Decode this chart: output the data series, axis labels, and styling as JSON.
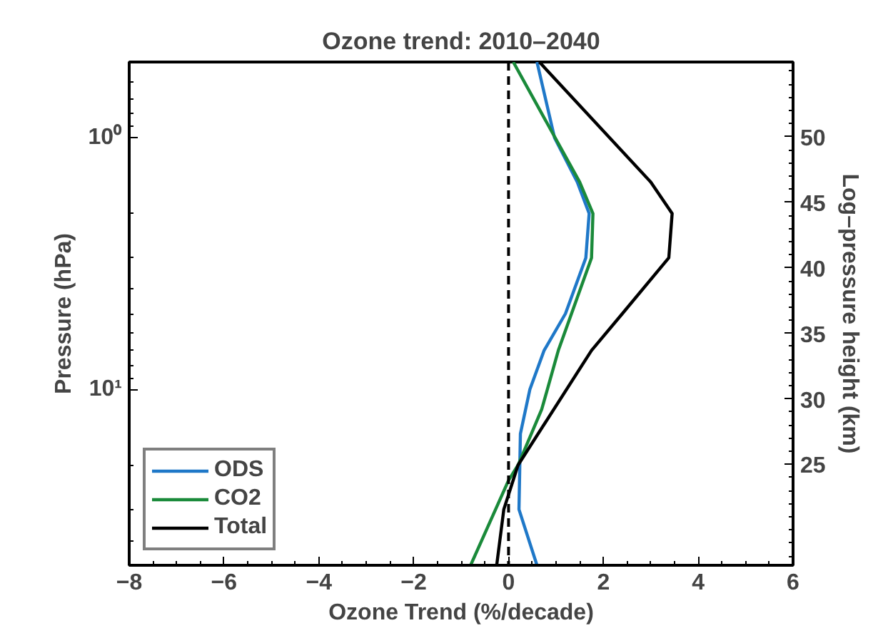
{
  "chart_data": {
    "type": "line",
    "title": "Ozone trend: 2010–2040",
    "xlabel": "Ozone Trend (%/decade)",
    "ylabel": "Pressure (hPa)",
    "y2label": "Log–pressure height (km)",
    "xlim": [
      -8,
      6
    ],
    "xticks": [
      {
        "value": -8,
        "label": "−8"
      },
      {
        "value": -6,
        "label": "−6"
      },
      {
        "value": -4,
        "label": "−4"
      },
      {
        "value": -2,
        "label": "−2"
      },
      0,
      2,
      4,
      6
    ],
    "ylim": [
      50,
      0.5
    ],
    "yticks": [
      {
        "value": 1,
        "label": "10⁰"
      },
      {
        "value": 10,
        "label": "10¹"
      }
    ],
    "y2lim": [
      17.3,
      55.7
    ],
    "y2ticks": [
      25,
      30,
      35,
      40,
      45,
      50
    ],
    "log": "y",
    "grid": false,
    "legend": "bottom left",
    "line_style": "solid",
    "marker": "none",
    "ref_lines": [
      {
        "axis": "x",
        "value": 0,
        "line_style": "dashed",
        "color": "#000000"
      }
    ],
    "series": [
      {
        "name": "ODS",
        "color": "#1f78c8",
        "x": [
          0.6,
          0.97,
          1.45,
          1.7,
          1.63,
          1.2,
          0.75,
          0.45,
          0.25,
          0.22,
          0.6
        ],
        "values": [
          0.5,
          1,
          1.5,
          2,
          3,
          5,
          7,
          10,
          15,
          30,
          50
        ]
      },
      {
        "name": "CO2",
        "color": "#1a8a3a",
        "x": [
          0.1,
          1.5,
          1.78,
          1.75,
          1.05,
          0.7,
          0.2,
          0.0,
          -0.8
        ],
        "values": [
          0.5,
          1.5,
          2,
          3,
          7,
          12,
          20,
          23,
          50
        ]
      },
      {
        "name": "Total",
        "color": "#000000",
        "x": [
          0.65,
          3.0,
          3.45,
          3.38,
          2.4,
          1.75,
          0.2,
          -0.1,
          -0.25
        ],
        "values": [
          0.5,
          1.5,
          2,
          3,
          5,
          7,
          20,
          30,
          50
        ]
      }
    ]
  }
}
